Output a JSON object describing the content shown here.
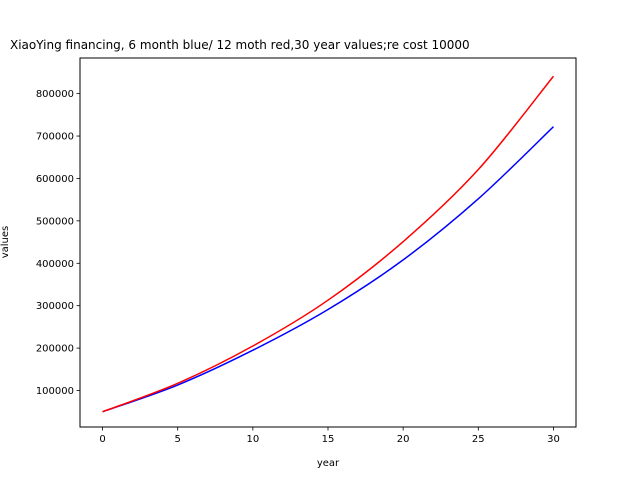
{
  "chart_data": {
    "type": "line",
    "title": "XiaoYing financing, 6 month blue/ 12 moth red,30 year values;re cost 10000",
    "xlabel": "year",
    "ylabel": "values",
    "xlim": [
      -1.5,
      31.5
    ],
    "ylim": [
      14000,
      884000
    ],
    "xticks": [
      0,
      5,
      10,
      15,
      20,
      25,
      30
    ],
    "yticks": [
      100000,
      200000,
      300000,
      400000,
      500000,
      600000,
      700000,
      800000
    ],
    "grid": false,
    "series": [
      {
        "color": "#0000ff",
        "x": [
          0,
          5,
          10,
          15,
          20,
          25,
          30
        ],
        "y": [
          50000,
          113000,
          195000,
          291000,
          408000,
          552000,
          722000
        ]
      },
      {
        "color": "#ff0000",
        "x": [
          0,
          5,
          10,
          15,
          20,
          25,
          30
        ],
        "y": [
          50000,
          117000,
          205000,
          313000,
          451000,
          621000,
          841000
        ]
      }
    ]
  }
}
